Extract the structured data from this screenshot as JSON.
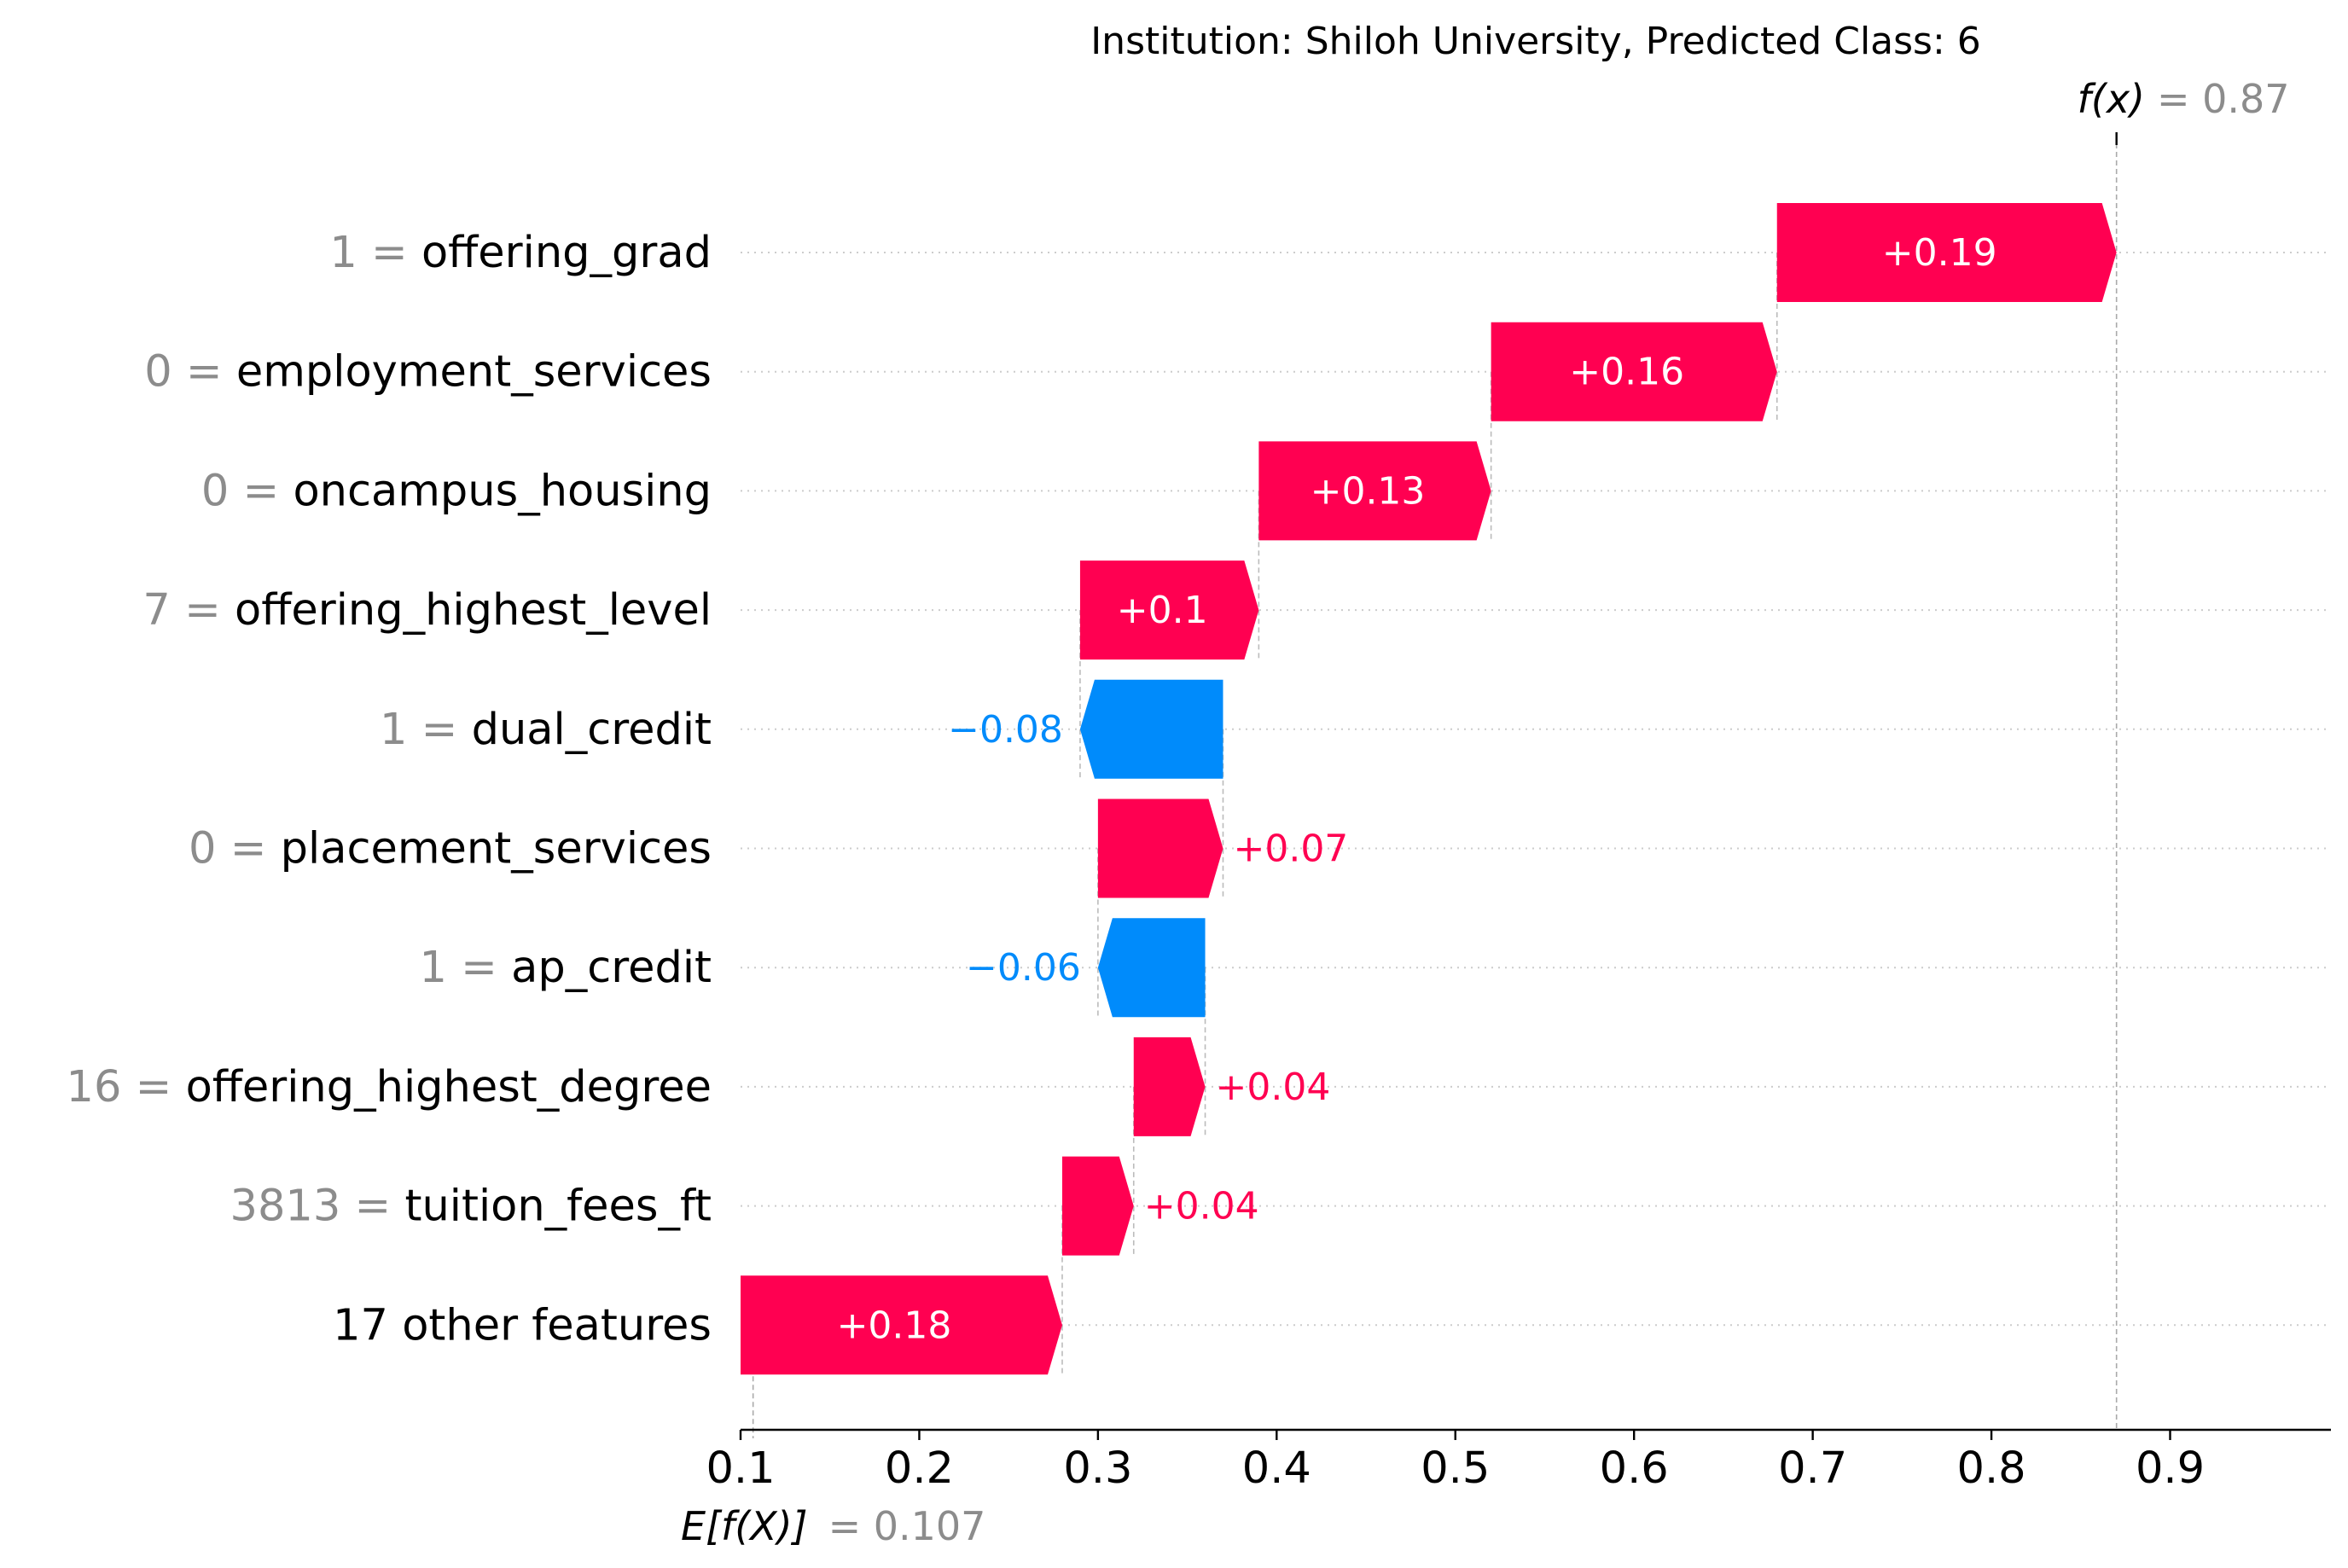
{
  "chart_data": {
    "type": "waterfall",
    "title": "Institution: Shiloh University, Predicted Class: 6",
    "base_value": 0.107,
    "base_label": "E[f(X)]",
    "base_value_text": "= 0.107",
    "output_value": 0.87,
    "output_label": "f(x)",
    "output_value_text": "= 0.87",
    "xlim": [
      0.1,
      0.99
    ],
    "x_ticks": [
      0.1,
      0.2,
      0.3,
      0.4,
      0.5,
      0.6,
      0.7,
      0.8,
      0.9
    ],
    "x_tick_labels": [
      "0.1",
      "0.2",
      "0.3",
      "0.4",
      "0.5",
      "0.6",
      "0.7",
      "0.8",
      "0.9"
    ],
    "positive_color": "#ff0051",
    "negative_color": "#008bfb",
    "features": [
      {
        "value": "1",
        "name": "offering_grad",
        "shap": 0.19,
        "label": "+0.19"
      },
      {
        "value": "0",
        "name": "employment_services",
        "shap": 0.16,
        "label": "+0.16"
      },
      {
        "value": "0",
        "name": "oncampus_housing",
        "shap": 0.13,
        "label": "+0.13"
      },
      {
        "value": "7",
        "name": "offering_highest_level",
        "shap": 0.1,
        "label": "+0.1"
      },
      {
        "value": "1",
        "name": "dual_credit",
        "shap": -0.08,
        "label": "−0.08"
      },
      {
        "value": "0",
        "name": "placement_services",
        "shap": 0.07,
        "label": "+0.07"
      },
      {
        "value": "1",
        "name": "ap_credit",
        "shap": -0.06,
        "label": "−0.06"
      },
      {
        "value": "16",
        "name": "offering_highest_degree",
        "shap": 0.04,
        "label": "+0.04"
      },
      {
        "value": "3813",
        "name": "tuition_fees_ft",
        "shap": 0.04,
        "label": "+0.04"
      },
      {
        "value": "",
        "name": "17 other features",
        "shap": 0.18,
        "label": "+0.18"
      }
    ]
  }
}
